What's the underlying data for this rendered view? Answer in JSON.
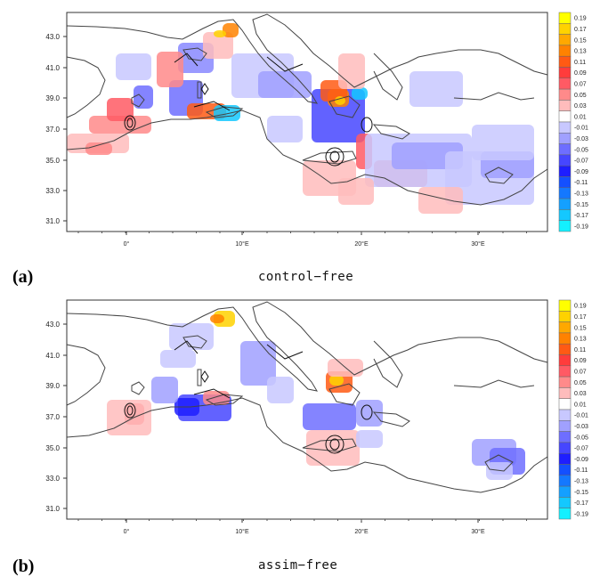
{
  "panels": [
    {
      "id": "a",
      "letter": "(a)",
      "caption": "control−free"
    },
    {
      "id": "b",
      "letter": "(b)",
      "caption": "assim−free"
    }
  ],
  "lat_ticks": [
    "43.0",
    "41.0",
    "39.0",
    "37.0",
    "35.0",
    "33.0",
    "31.0"
  ],
  "lon_ticks": [
    "0°",
    "10°E",
    "20°E",
    "30°E"
  ],
  "colorbar": {
    "levels": [
      "0.19",
      "0.17",
      "0.15",
      "0.13",
      "0.11",
      "0.09",
      "0.07",
      "0.05",
      "0.03",
      "0.01",
      "-0.01",
      "-0.03",
      "-0.05",
      "-0.07",
      "-0.09",
      "-0.11",
      "-0.13",
      "-0.15",
      "-0.17",
      "-0.19"
    ],
    "colors": [
      "#ffff00",
      "#ffd200",
      "#ffa800",
      "#ff8200",
      "#ff5a14",
      "#ff3c3c",
      "#ff5a64",
      "#ff8a8a",
      "#ffbcbc",
      "#ffffff",
      "#c8c8ff",
      "#a0a0ff",
      "#6e6eff",
      "#4646ff",
      "#1e1eff",
      "#1450ff",
      "#1478ff",
      "#14a0ff",
      "#14c8ff",
      "#14f0ff"
    ]
  }
}
